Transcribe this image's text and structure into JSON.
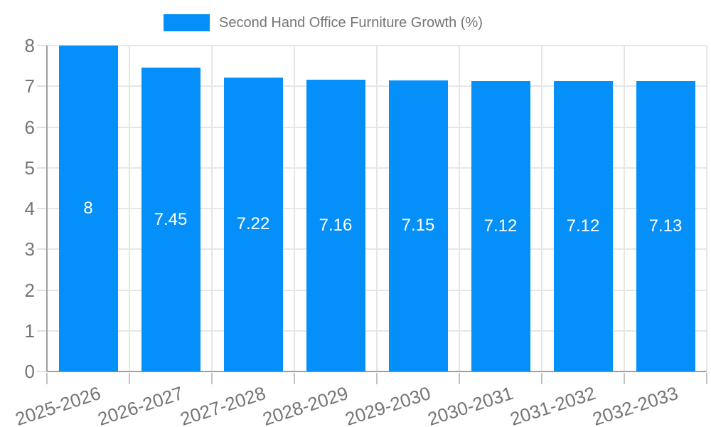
{
  "legend": {
    "label": "Second Hand Office Furniture Growth (%)"
  },
  "chart_data": {
    "type": "bar",
    "title": "Second Hand Office Furniture Growth (%)",
    "categories": [
      "2025-2026",
      "2026-2027",
      "2027-2028",
      "2028-2029",
      "2029-2030",
      "2030-2031",
      "2031-2032",
      "2032-2033"
    ],
    "series": [
      {
        "name": "Second Hand Office Furniture Growth (%)",
        "values": [
          8,
          7.45,
          7.22,
          7.16,
          7.15,
          7.12,
          7.12,
          7.13
        ]
      }
    ],
    "value_labels": [
      "8",
      "7.45",
      "7.22",
      "7.16",
      "7.15",
      "7.12",
      "7.12",
      "7.13"
    ],
    "xlabel": "",
    "ylabel": "",
    "ylim": [
      0,
      8
    ],
    "yticks": [
      0,
      1,
      2,
      3,
      4,
      5,
      6,
      7,
      8
    ],
    "grid": true,
    "legend_position": "top",
    "colors": {
      "bar": "#0490f8",
      "bar_label": "#ffffff",
      "axis_text": "#757575",
      "grid_line": "#e6e6e6",
      "axis_line": "#9e9e9e",
      "background": "#ffffff"
    }
  }
}
